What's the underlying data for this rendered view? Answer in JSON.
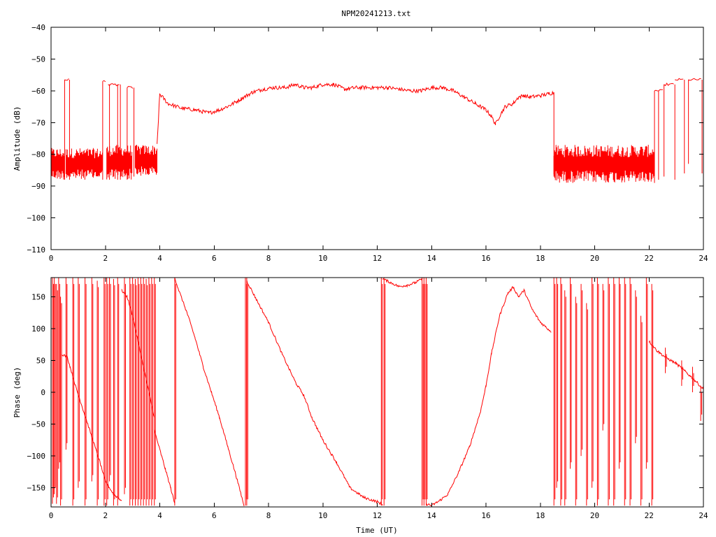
{
  "chart_data": [
    {
      "type": "line",
      "title": "NPM20241213.txt",
      "xlabel": "",
      "ylabel": "Amplitude (dB)",
      "xlim": [
        0,
        24
      ],
      "ylim": [
        -110,
        -40
      ],
      "xticks": [
        0,
        2,
        4,
        6,
        8,
        10,
        12,
        14,
        16,
        18,
        20,
        22,
        24
      ],
      "yticks": [
        -40,
        -50,
        -60,
        -70,
        -80,
        -90,
        -100,
        -110
      ],
      "ytick_labels": [
        "−40",
        "−50",
        "−60",
        "−70",
        "−80",
        "−90",
        "−100",
        "−110"
      ],
      "color": "#ff0000",
      "series": [
        {
          "x": [
            3.9,
            4.0,
            4.3,
            4.8,
            5.3,
            5.8,
            6.2,
            6.6,
            7.0,
            7.4,
            7.8,
            8.2,
            8.6,
            9.0,
            9.3,
            9.6,
            10.0,
            10.4,
            10.8,
            11.2,
            11.6,
            12.0,
            12.4,
            12.8,
            13.2,
            13.6,
            14.0,
            14.4,
            14.8,
            15.2,
            15.6,
            16.0,
            16.2,
            16.35,
            16.5,
            16.7,
            17.0,
            17.2,
            17.4,
            17.6,
            18.0,
            18.3,
            18.5
          ],
          "y": [
            -77,
            -61,
            -64,
            -65.5,
            -66,
            -67,
            -66,
            -64.5,
            -62.5,
            -60.5,
            -59.5,
            -59,
            -59,
            -58,
            -59,
            -59,
            -58,
            -58,
            -59.5,
            -59,
            -59,
            -59,
            -59,
            -59.5,
            -60,
            -60,
            -59,
            -59,
            -60,
            -62,
            -64,
            -66,
            -68,
            -70.5,
            -68,
            -65,
            -64,
            -62,
            -61.5,
            -62,
            -61.5,
            -61,
            -60.5
          ]
        }
      ],
      "bands": [
        {
          "x": [
            0.0,
            0.5
          ],
          "y": [
            -88,
            -78
          ]
        },
        {
          "x": [
            0.55,
            1.9
          ],
          "y": [
            -88,
            -78
          ]
        },
        {
          "x": [
            2.05,
            3.0
          ],
          "y": [
            -88,
            -77
          ]
        },
        {
          "x": [
            3.1,
            3.9
          ],
          "y": [
            -87,
            -77
          ]
        },
        {
          "x": [
            18.5,
            22.2
          ],
          "y": [
            -89,
            -77
          ]
        }
      ],
      "plateaus": [
        {
          "x": [
            0.5,
            0.68
          ],
          "y": -56.5
        },
        {
          "x": [
            1.9,
            2.05
          ],
          "y": -57
        },
        {
          "x": [
            2.1,
            2.55
          ],
          "y": -58
        },
        {
          "x": [
            2.8,
            3.05
          ],
          "y": -59
        },
        {
          "x": [
            22.2,
            22.55
          ],
          "y": -60
        },
        {
          "x": [
            22.55,
            22.95
          ],
          "y": -58
        },
        {
          "x": [
            22.95,
            23.3
          ],
          "y": -56.5
        },
        {
          "x": [
            23.45,
            23.95
          ],
          "y": -56.5
        }
      ],
      "drops": [
        {
          "x": 0.5,
          "y": [
            -88,
            -56.5
          ]
        },
        {
          "x": 0.68,
          "y": [
            -88,
            -56.5
          ]
        },
        {
          "x": 1.9,
          "y": [
            -88,
            -57
          ]
        },
        {
          "x": 2.15,
          "y": [
            -88,
            -58
          ]
        },
        {
          "x": 2.45,
          "y": [
            -88,
            -58
          ]
        },
        {
          "x": 2.55,
          "y": [
            -88,
            -58
          ]
        },
        {
          "x": 2.8,
          "y": [
            -88,
            -59
          ]
        },
        {
          "x": 3.05,
          "y": [
            -87,
            -59
          ]
        },
        {
          "x": 18.5,
          "y": [
            -87,
            -60.5
          ]
        },
        {
          "x": 22.2,
          "y": [
            -89,
            -60
          ]
        },
        {
          "x": 22.35,
          "y": [
            -88,
            -60
          ]
        },
        {
          "x": 22.55,
          "y": [
            -87,
            -58
          ]
        },
        {
          "x": 22.95,
          "y": [
            -88,
            -58
          ]
        },
        {
          "x": 23.3,
          "y": [
            -86,
            -56.5
          ]
        },
        {
          "x": 23.45,
          "y": [
            -83,
            -56.5
          ]
        },
        {
          "x": 23.95,
          "y": [
            -86,
            -56.5
          ]
        }
      ]
    },
    {
      "type": "line",
      "title": "",
      "xlabel": "Time (UT)",
      "ylabel": "Phase (deg)",
      "xlim": [
        0,
        24
      ],
      "ylim": [
        -180,
        180
      ],
      "xticks": [
        0,
        2,
        4,
        6,
        8,
        10,
        12,
        14,
        16,
        18,
        20,
        22,
        24
      ],
      "yticks": [
        150,
        100,
        50,
        0,
        -50,
        -100,
        -150
      ],
      "ytick_labels": [
        "150",
        "100",
        "50",
        "0",
        "−50",
        "−100",
        "−150"
      ],
      "color": "#ff0000",
      "series": [
        {
          "x": [
            0.4,
            0.6,
            0.7,
            0.9,
            1.2,
            1.5,
            1.8,
            2.0,
            2.3,
            2.6
          ],
          "y": [
            60,
            55,
            40,
            10,
            -30,
            -70,
            -110,
            -140,
            -160,
            -170
          ]
        },
        {
          "x": [
            2.6,
            2.8,
            3.0,
            3.2,
            3.5,
            3.8
          ],
          "y": [
            160,
            150,
            120,
            80,
            20,
            -40
          ]
        },
        {
          "x": [
            3.8,
            4.0,
            4.2,
            4.4,
            4.55
          ],
          "y": [
            -60,
            -90,
            -120,
            -150,
            -175
          ]
        },
        {
          "x": [
            4.55,
            4.7,
            5.0,
            5.3,
            5.6,
            5.9,
            6.2,
            6.5,
            6.8,
            7.1
          ],
          "y": [
            180,
            160,
            125,
            85,
            40,
            0,
            -40,
            -85,
            -130,
            -178
          ]
        },
        {
          "x": [
            7.2,
            7.5,
            8.0,
            8.5,
            9.0,
            9.3,
            9.6,
            10.0,
            10.5,
            11.0,
            11.5,
            12.0,
            12.2
          ],
          "y": [
            175,
            150,
            110,
            60,
            15,
            -5,
            -40,
            -75,
            -110,
            -150,
            -165,
            -172,
            -176
          ]
        },
        {
          "x": [
            12.2,
            12.5,
            12.8,
            13.1,
            13.4,
            13.65
          ],
          "y": [
            178,
            172,
            166,
            168,
            172,
            178
          ]
        },
        {
          "x": [
            13.8,
            14.0,
            14.3,
            14.6,
            15.0,
            15.4,
            15.8,
            16.0,
            16.2,
            16.5,
            16.8,
            17.0,
            17.2,
            17.4,
            17.7,
            18.0,
            18.4
          ],
          "y": [
            -175,
            -178,
            -170,
            -160,
            -125,
            -85,
            -30,
            10,
            60,
            120,
            155,
            165,
            150,
            160,
            130,
            110,
            95
          ]
        },
        {
          "x": [
            22.0,
            22.3,
            22.6,
            23.0,
            23.4,
            23.7,
            24.0
          ],
          "y": [
            80,
            65,
            55,
            45,
            30,
            18,
            5
          ]
        }
      ],
      "spikes": [
        {
          "x": 0.05,
          "y": [
            -175,
            180
          ]
        },
        {
          "x": 0.12,
          "y": [
            -160,
            180
          ]
        },
        {
          "x": 0.2,
          "y": [
            -175,
            170
          ]
        },
        {
          "x": 0.28,
          "y": [
            -120,
            180
          ]
        },
        {
          "x": 0.35,
          "y": [
            -178,
            150
          ]
        },
        {
          "x": 0.55,
          "y": [
            -90,
            180
          ]
        },
        {
          "x": 0.8,
          "y": [
            -178,
            180
          ]
        },
        {
          "x": 1.0,
          "y": [
            -150,
            180
          ]
        },
        {
          "x": 1.25,
          "y": [
            -178,
            180
          ]
        },
        {
          "x": 1.5,
          "y": [
            -140,
            180
          ]
        },
        {
          "x": 1.7,
          "y": [
            -178,
            175
          ]
        },
        {
          "x": 1.95,
          "y": [
            -178,
            180
          ]
        },
        {
          "x": 2.05,
          "y": [
            -178,
            180
          ]
        },
        {
          "x": 2.15,
          "y": [
            -140,
            180
          ]
        },
        {
          "x": 2.3,
          "y": [
            -178,
            178
          ]
        },
        {
          "x": 2.45,
          "y": [
            -178,
            180
          ]
        },
        {
          "x": 2.7,
          "y": [
            -160,
            180
          ]
        },
        {
          "x": 2.9,
          "y": [
            -178,
            180
          ]
        },
        {
          "x": 3.0,
          "y": [
            -178,
            180
          ]
        },
        {
          "x": 3.1,
          "y": [
            -178,
            178
          ]
        },
        {
          "x": 3.2,
          "y": [
            -178,
            180
          ]
        },
        {
          "x": 3.3,
          "y": [
            -178,
            180
          ]
        },
        {
          "x": 3.4,
          "y": [
            -178,
            180
          ]
        },
        {
          "x": 3.5,
          "y": [
            -178,
            178
          ]
        },
        {
          "x": 3.6,
          "y": [
            -178,
            180
          ]
        },
        {
          "x": 3.7,
          "y": [
            -178,
            180
          ]
        },
        {
          "x": 3.8,
          "y": [
            -178,
            180
          ]
        },
        {
          "x": 4.55,
          "y": [
            -178,
            180
          ]
        },
        {
          "x": 7.15,
          "y": [
            -178,
            180
          ]
        },
        {
          "x": 7.2,
          "y": [
            -178,
            180
          ]
        },
        {
          "x": 12.15,
          "y": [
            -178,
            180
          ]
        },
        {
          "x": 12.25,
          "y": [
            -178,
            180
          ]
        },
        {
          "x": 13.65,
          "y": [
            -178,
            180
          ]
        },
        {
          "x": 13.72,
          "y": [
            -178,
            180
          ]
        },
        {
          "x": 13.8,
          "y": [
            -178,
            180
          ]
        },
        {
          "x": 18.5,
          "y": [
            -178,
            180
          ]
        },
        {
          "x": 18.6,
          "y": [
            -150,
            180
          ]
        },
        {
          "x": 18.75,
          "y": [
            -178,
            180
          ]
        },
        {
          "x": 18.9,
          "y": [
            -178,
            160
          ]
        },
        {
          "x": 19.1,
          "y": [
            -120,
            180
          ]
        },
        {
          "x": 19.3,
          "y": [
            -178,
            150
          ]
        },
        {
          "x": 19.5,
          "y": [
            -100,
            170
          ]
        },
        {
          "x": 19.7,
          "y": [
            -178,
            140
          ]
        },
        {
          "x": 19.9,
          "y": [
            -150,
            180
          ]
        },
        {
          "x": 20.1,
          "y": [
            -178,
            180
          ]
        },
        {
          "x": 20.3,
          "y": [
            -60,
            170
          ]
        },
        {
          "x": 20.5,
          "y": [
            -178,
            180
          ]
        },
        {
          "x": 20.7,
          "y": [
            -178,
            180
          ]
        },
        {
          "x": 20.9,
          "y": [
            -120,
            180
          ]
        },
        {
          "x": 21.1,
          "y": [
            -178,
            180
          ]
        },
        {
          "x": 21.3,
          "y": [
            -178,
            180
          ]
        },
        {
          "x": 21.5,
          "y": [
            -80,
            160
          ]
        },
        {
          "x": 21.7,
          "y": [
            -178,
            120
          ]
        },
        {
          "x": 21.9,
          "y": [
            -120,
            180
          ]
        },
        {
          "x": 22.1,
          "y": [
            -178,
            170
          ]
        },
        {
          "x": 22.6,
          "y": [
            30,
            70
          ]
        },
        {
          "x": 23.2,
          "y": [
            10,
            50
          ]
        },
        {
          "x": 23.6,
          "y": [
            0,
            40
          ]
        },
        {
          "x": 23.9,
          "y": [
            -45,
            10
          ]
        }
      ]
    }
  ]
}
